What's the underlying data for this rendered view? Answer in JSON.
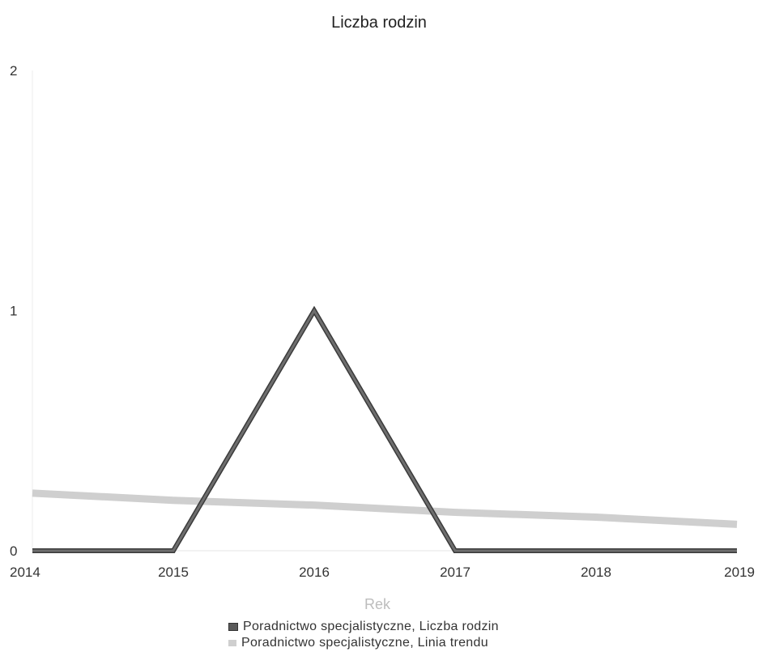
{
  "chart_data": {
    "type": "line",
    "title": "Liczba rodzin",
    "xlabel": "Rek",
    "ylabel": "",
    "categories": [
      "2014",
      "2015",
      "2016",
      "2017",
      "2018",
      "2019"
    ],
    "x": [
      2014,
      2015,
      2016,
      2017,
      2018,
      2019
    ],
    "ylim": [
      0,
      2
    ],
    "yticks": [
      "0",
      "1",
      "2"
    ],
    "grid": false,
    "legend_position": "bottom",
    "series": [
      {
        "name": "Poradnictwo specjalistyczne, Liczba rodzin",
        "values": [
          0,
          0,
          1,
          0,
          0,
          0
        ],
        "color": "#6e6e6e"
      },
      {
        "name": "Poradnictwo specjalistyczne, Linia trendu",
        "values": [
          0.24,
          0.21,
          0.19,
          0.16,
          0.14,
          0.11
        ],
        "color": "#cfcfcf"
      }
    ]
  }
}
